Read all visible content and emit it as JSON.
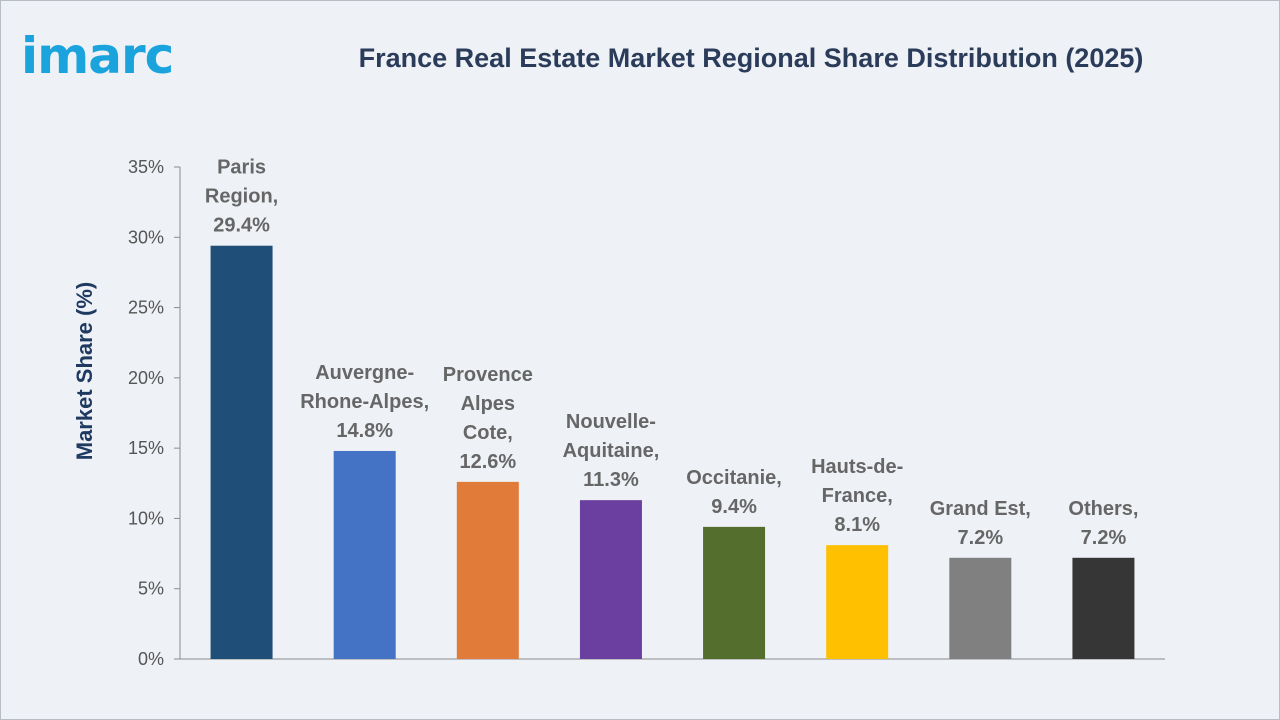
{
  "brand": {
    "logo_text": "imarc"
  },
  "chart_data": {
    "type": "bar",
    "title": "France Real Estate Market Regional Share Distribution (2025)",
    "xlabel": "",
    "ylabel": "Market Share (%)",
    "ylim": [
      0,
      35
    ],
    "yticks": [
      "0%",
      "5%",
      "10%",
      "15%",
      "20%",
      "25%",
      "30%",
      "35%"
    ],
    "grid": false,
    "categories": [
      "Paris Region",
      "Auvergne-Rhone-Alpes",
      "Provence Alpes Cote",
      "Nouvelle-Aquitaine",
      "Occitanie",
      "Hauts-de-France",
      "Grand Est",
      "Others"
    ],
    "values": [
      29.4,
      14.8,
      12.6,
      11.3,
      9.4,
      8.1,
      7.2,
      7.2
    ],
    "data_labels": [
      [
        "Paris",
        "Region,",
        "29.4%"
      ],
      [
        "Auvergne-",
        "Rhone-Alpes,",
        "14.8%"
      ],
      [
        "Provence",
        "Alpes",
        "Cote,",
        "12.6%"
      ],
      [
        "Nouvelle-",
        "Aquitaine,",
        "11.3%"
      ],
      [
        "Occitanie,",
        "9.4%"
      ],
      [
        "Hauts-de-",
        "France,",
        "8.1%"
      ],
      [
        "Grand Est,",
        "7.2%"
      ],
      [
        "Others,",
        "7.2%"
      ]
    ],
    "colors": [
      "#1f4e79",
      "#4472c4",
      "#e07b39",
      "#6b3fa0",
      "#546e2e",
      "#ffc000",
      "#808080",
      "#363636"
    ]
  }
}
